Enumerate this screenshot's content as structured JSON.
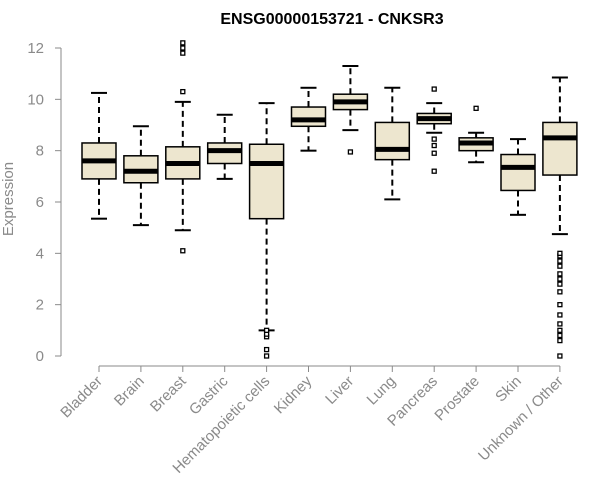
{
  "chart_data": {
    "type": "box",
    "title": "ENSG00000153721 - CNKSR3",
    "xlabel": "",
    "ylabel": "Expression",
    "ylim": [
      0,
      12
    ],
    "yticks": [
      0,
      2,
      4,
      6,
      8,
      10,
      12
    ],
    "grid": false,
    "colors": {
      "box_fill": "#ede6cf",
      "box_stroke": "#000000",
      "median": "#000000",
      "axis": "#8a8a8a"
    },
    "categories": [
      "Bladder",
      "Brain",
      "Breast",
      "Gastric",
      "Hematopoietic cells",
      "Kidney",
      "Liver",
      "Lung",
      "Pancreas",
      "Prostate",
      "Skin",
      "Unknown / Other"
    ],
    "boxes": [
      {
        "category": "Bladder",
        "whisker_low": 5.35,
        "q1": 6.9,
        "median": 7.6,
        "q3": 8.3,
        "whisker_high": 10.25,
        "outliers": []
      },
      {
        "category": "Brain",
        "whisker_low": 5.1,
        "q1": 6.75,
        "median": 7.2,
        "q3": 7.8,
        "whisker_high": 8.95,
        "outliers": []
      },
      {
        "category": "Breast",
        "whisker_low": 4.9,
        "q1": 6.9,
        "median": 7.5,
        "q3": 8.15,
        "whisker_high": 9.9,
        "outliers": [
          4.1,
          10.3,
          11.8,
          12.0,
          12.2
        ]
      },
      {
        "category": "Gastric",
        "whisker_low": 6.9,
        "q1": 7.5,
        "median": 8.0,
        "q3": 8.3,
        "whisker_high": 9.4,
        "outliers": []
      },
      {
        "category": "Hematopoietic cells",
        "whisker_low": 1.0,
        "q1": 5.35,
        "median": 7.5,
        "q3": 8.25,
        "whisker_high": 9.85,
        "outliers": [
          0.0,
          0.25,
          0.75,
          0.85,
          1.0
        ]
      },
      {
        "category": "Kidney",
        "whisker_low": 8.0,
        "q1": 8.95,
        "median": 9.2,
        "q3": 9.7,
        "whisker_high": 10.45,
        "outliers": []
      },
      {
        "category": "Liver",
        "whisker_low": 8.8,
        "q1": 9.6,
        "median": 9.9,
        "q3": 10.2,
        "whisker_high": 11.3,
        "outliers": [
          7.95
        ]
      },
      {
        "category": "Lung",
        "whisker_low": 6.1,
        "q1": 7.65,
        "median": 8.05,
        "q3": 9.1,
        "whisker_high": 10.45,
        "outliers": []
      },
      {
        "category": "Pancreas",
        "whisker_low": 8.7,
        "q1": 9.05,
        "median": 9.25,
        "q3": 9.45,
        "whisker_high": 9.85,
        "outliers": [
          7.2,
          7.9,
          8.2,
          8.45,
          10.4
        ]
      },
      {
        "category": "Prostate",
        "whisker_low": 7.55,
        "q1": 8.0,
        "median": 8.3,
        "q3": 8.5,
        "whisker_high": 8.7,
        "outliers": [
          9.65
        ]
      },
      {
        "category": "Skin",
        "whisker_low": 5.5,
        "q1": 6.45,
        "median": 7.35,
        "q3": 7.85,
        "whisker_high": 8.45,
        "outliers": []
      },
      {
        "category": "Unknown / Other",
        "whisker_low": 4.75,
        "q1": 7.05,
        "median": 8.5,
        "q3": 9.1,
        "whisker_high": 10.85,
        "outliers": [
          0.0,
          0.6,
          0.8,
          1.0,
          1.25,
          1.6,
          2.0,
          2.5,
          2.8,
          3.0,
          3.2,
          3.5,
          3.7,
          3.9,
          4.0
        ]
      }
    ]
  }
}
